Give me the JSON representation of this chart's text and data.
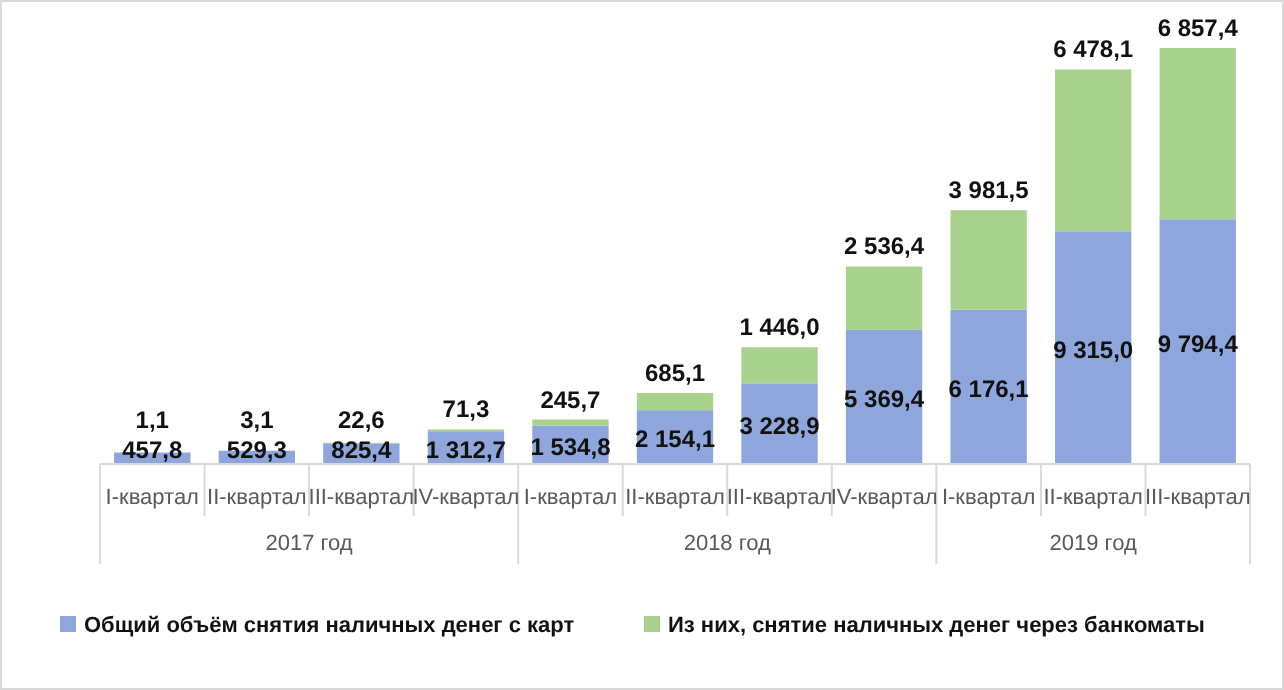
{
  "chart_data": {
    "type": "bar",
    "stacked": true,
    "legend": "bottom",
    "categories": [
      "I-квартал",
      "II-квартал",
      "III-квартал",
      "IV-квартал",
      "I-квартал",
      "II-квартал",
      "III-квартал",
      "IV-квартал",
      "I-квартал",
      "II-квартал",
      "III-квартал"
    ],
    "series": [
      {
        "name": "Общий объём снятия наличных денег с карт",
        "color": "#8ea6dc",
        "values": [
          457.8,
          529.3,
          825.4,
          1312.7,
          1534.8,
          2154.1,
          3228.9,
          5369.4,
          6176.1,
          9315.0,
          9794.4
        ],
        "value_labels": [
          "457,8",
          "529,3",
          "825,4",
          "1 312,7",
          "1 534,8",
          "2 154,1",
          "3 228,9",
          "5 369,4",
          "6 176,1",
          "9 315,0",
          "9 794,4"
        ]
      },
      {
        "name": "Из них, снятие наличных денег через банкоматы",
        "color": "#a9d18e",
        "values": [
          1.1,
          3.1,
          22.6,
          71.3,
          245.7,
          685.1,
          1446.0,
          2536.4,
          3981.5,
          6478.1,
          6857.4
        ],
        "value_labels": [
          "1,1",
          "3,1",
          "22,6",
          "71,3",
          "245,7",
          "685,1",
          "1 446,0",
          "2 536,4",
          "3 981,5",
          "6 478,1",
          "6 857,4"
        ]
      }
    ],
    "annotations": [
      "2017 год",
      "2018 год",
      "2019 год"
    ]
  }
}
